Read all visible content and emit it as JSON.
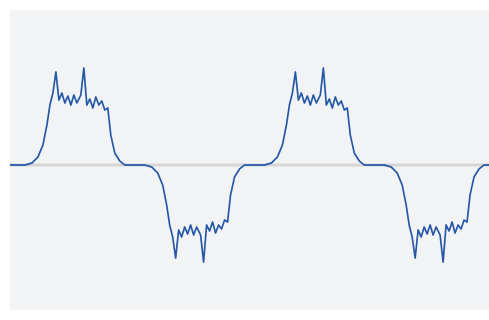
{
  "chart_data": {
    "type": "line",
    "color": "#2557a7",
    "xlim": [
      0,
      480
    ],
    "ylim": [
      -1.5,
      1.5
    ],
    "x": [
      0,
      15,
      22,
      28,
      33,
      37,
      40,
      43,
      46,
      49,
      52,
      55,
      58,
      61,
      64,
      67,
      71,
      74,
      77,
      80,
      83,
      86,
      89,
      92,
      95,
      98,
      101,
      105,
      110,
      115,
      135,
      142,
      148,
      153,
      157,
      160,
      163,
      166,
      169,
      172,
      175,
      178,
      181,
      184,
      187,
      191,
      194,
      197,
      200,
      203,
      206,
      209,
      212,
      215,
      218,
      221,
      225,
      230,
      235,
      255,
      262,
      268,
      273,
      277,
      280,
      283,
      286,
      289,
      292,
      295,
      298,
      301,
      304,
      307,
      311,
      314,
      317,
      320,
      323,
      326,
      329,
      332,
      335,
      338,
      341,
      345,
      350,
      355,
      375,
      382,
      388,
      393,
      397,
      400,
      403,
      406,
      409,
      412,
      415,
      418,
      421,
      424,
      427,
      431,
      434,
      437,
      440,
      443,
      446,
      449,
      452,
      455,
      458,
      461,
      465,
      470,
      475,
      480
    ],
    "values": [
      0,
      0,
      0.02,
      0.08,
      0.2,
      0.4,
      0.6,
      0.72,
      0.93,
      0.65,
      0.72,
      0.62,
      0.69,
      0.6,
      0.7,
      0.62,
      0.7,
      0.97,
      0.6,
      0.66,
      0.57,
      0.68,
      0.6,
      0.64,
      0.55,
      0.57,
      0.3,
      0.12,
      0.04,
      0,
      0,
      -0.02,
      -0.08,
      -0.2,
      -0.4,
      -0.6,
      -0.72,
      -0.93,
      -0.65,
      -0.72,
      -0.62,
      -0.69,
      -0.6,
      -0.7,
      -0.62,
      -0.7,
      -0.97,
      -0.6,
      -0.66,
      -0.57,
      -0.68,
      -0.6,
      -0.64,
      -0.55,
      -0.57,
      -0.3,
      -0.12,
      -0.04,
      0,
      0,
      0.02,
      0.08,
      0.2,
      0.4,
      0.6,
      0.72,
      0.93,
      0.65,
      0.72,
      0.62,
      0.69,
      0.6,
      0.7,
      0.62,
      0.7,
      0.97,
      0.6,
      0.66,
      0.57,
      0.68,
      0.6,
      0.64,
      0.55,
      0.57,
      0.3,
      0.12,
      0.04,
      0,
      0,
      -0.02,
      -0.08,
      -0.2,
      -0.4,
      -0.6,
      -0.72,
      -0.93,
      -0.65,
      -0.72,
      -0.62,
      -0.69,
      -0.6,
      -0.7,
      -0.62,
      -0.7,
      -0.97,
      -0.6,
      -0.66,
      -0.57,
      -0.68,
      -0.6,
      -0.64,
      -0.55,
      -0.57,
      -0.3,
      -0.12,
      -0.04,
      0,
      0
    ]
  }
}
